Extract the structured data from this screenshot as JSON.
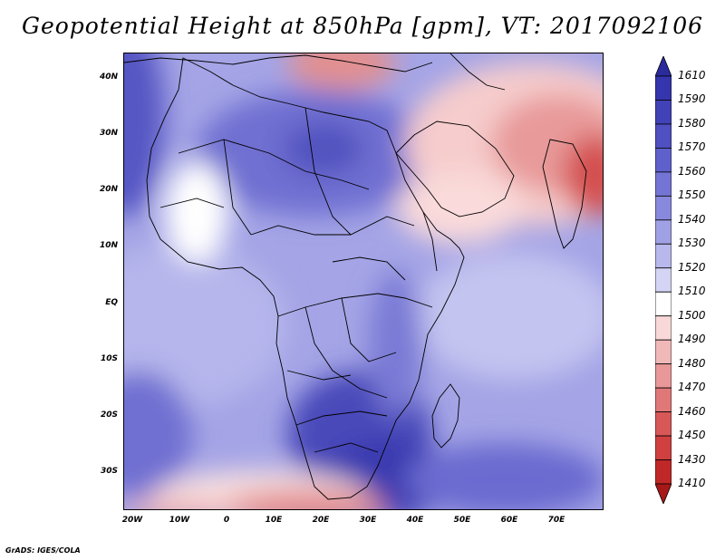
{
  "title": "Geopotential Height at 850hPa [gpm], VT: 2017092106",
  "map": {
    "variable": "Geopotential Height at 850hPa",
    "units": "gpm",
    "valid_time": "2017092106",
    "lat_labels": [
      "40N",
      "30N",
      "20N",
      "10N",
      "EQ",
      "10S",
      "20S",
      "30S"
    ],
    "lon_labels": [
      "20W",
      "10W",
      "0",
      "10E",
      "20E",
      "30E",
      "40E",
      "50E",
      "60E",
      "70E"
    ]
  },
  "colorbar": {
    "levels": [
      "1610",
      "1590",
      "1580",
      "1570",
      "1560",
      "1550",
      "1540",
      "1530",
      "1520",
      "1510",
      "1500",
      "1490",
      "1480",
      "1470",
      "1460",
      "1450",
      "1430",
      "1410"
    ],
    "colors": [
      "#2b2b9e",
      "#3535ad",
      "#4242b8",
      "#5050c2",
      "#6060cc",
      "#7474d4",
      "#8888dc",
      "#a0a0e4",
      "#b8b8ec",
      "#d4d4f4",
      "#ffffff",
      "#f8d8d8",
      "#f0b8b8",
      "#e89898",
      "#e07878",
      "#d85858",
      "#d04040",
      "#c02828",
      "#a81818"
    ]
  },
  "credit": "GrADS: IGES/COLA"
}
